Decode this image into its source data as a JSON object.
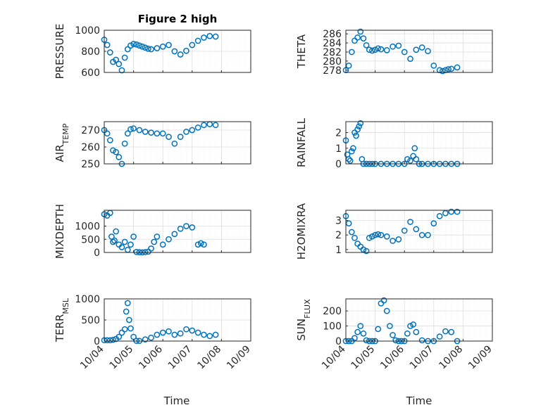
{
  "figure": {
    "title": "Figure 2 high",
    "marker_color": "#0072bd",
    "axis_color": "#262626",
    "grid_color": "#dedede",
    "left_xlabel": "Time",
    "right_xlabel": "Time"
  },
  "chart_data": [
    {
      "type": "scatter",
      "name": "pressure",
      "title": "Figure 2 high",
      "ylabel": "PRESSURE",
      "xlim": [
        0,
        5
      ],
      "ylim": [
        600,
        1000
      ],
      "yticks": [
        600,
        800,
        1000
      ],
      "xticks": [
        0,
        1,
        2,
        3,
        4,
        5
      ],
      "xticklabels": [
        "10/04",
        "10/05",
        "10/06",
        "10/07",
        "10/08",
        "10/09"
      ],
      "grid": true,
      "x": [
        0,
        0.1,
        0.2,
        0.3,
        0.4,
        0.5,
        0.6,
        0.7,
        0.8,
        0.9,
        1.0,
        1.1,
        1.2,
        1.3,
        1.4,
        1.5,
        1.6,
        1.8,
        2.0,
        2.2,
        2.4,
        2.6,
        2.8,
        3.0,
        3.2,
        3.4,
        3.6,
        3.8
      ],
      "y": [
        910,
        860,
        790,
        700,
        720,
        680,
        620,
        740,
        820,
        855,
        870,
        865,
        855,
        845,
        835,
        825,
        820,
        830,
        845,
        860,
        800,
        770,
        805,
        860,
        900,
        930,
        945,
        940
      ]
    },
    {
      "type": "scatter",
      "name": "theta",
      "ylabel": "THETA",
      "xlim": [
        0,
        5
      ],
      "ylim": [
        277.5,
        286.8
      ],
      "yticks": [
        278,
        280,
        282,
        284,
        286
      ],
      "xticks": [
        0,
        1,
        2,
        3,
        4,
        5
      ],
      "xticklabels": [
        "10/04",
        "10/05",
        "10/06",
        "10/07",
        "10/08",
        "10/09"
      ],
      "grid": true,
      "x": [
        0,
        0.1,
        0.2,
        0.3,
        0.4,
        0.5,
        0.6,
        0.7,
        0.8,
        0.9,
        1.0,
        1.1,
        1.2,
        1.4,
        1.6,
        1.8,
        2.0,
        2.2,
        2.4,
        2.6,
        2.8,
        3.0,
        3.2,
        3.3,
        3.4,
        3.5,
        3.6,
        3.8
      ],
      "y": [
        278,
        279,
        282,
        284.5,
        285.2,
        286.5,
        285,
        283.5,
        282.5,
        282.3,
        282.5,
        282.8,
        282.6,
        282.4,
        283.2,
        283.4,
        282,
        280.5,
        282.5,
        283,
        282.2,
        279,
        278,
        277.8,
        278,
        278.2,
        278.3,
        278.6
      ]
    },
    {
      "type": "scatter",
      "name": "air_temp",
      "ylabel": "AIR_TEMP",
      "xlim": [
        0,
        5
      ],
      "ylim": [
        250,
        275
      ],
      "yticks": [
        250,
        260,
        270
      ],
      "xticks": [
        0,
        1,
        2,
        3,
        4,
        5
      ],
      "xticklabels": [
        "10/04",
        "10/05",
        "10/06",
        "10/07",
        "10/08",
        "10/09"
      ],
      "grid": true,
      "x": [
        0,
        0.1,
        0.2,
        0.3,
        0.4,
        0.5,
        0.6,
        0.7,
        0.8,
        0.9,
        1.0,
        1.2,
        1.4,
        1.6,
        1.8,
        2.0,
        2.2,
        2.4,
        2.6,
        2.8,
        3.0,
        3.2,
        3.4,
        3.6,
        3.8
      ],
      "y": [
        270,
        268,
        264,
        258,
        257,
        254,
        250,
        262,
        268,
        270.5,
        271,
        270,
        269,
        268.5,
        268,
        268,
        266,
        262,
        266,
        269,
        270,
        271.5,
        273,
        273.5,
        273
      ]
    },
    {
      "type": "scatter",
      "name": "rainfall",
      "ylabel": "RAINFALL",
      "xlim": [
        0,
        5
      ],
      "ylim": [
        0,
        2.7
      ],
      "yticks": [
        0,
        1,
        2
      ],
      "xticks": [
        0,
        1,
        2,
        3,
        4,
        5
      ],
      "xticklabels": [
        "10/04",
        "10/05",
        "10/06",
        "10/07",
        "10/08",
        "10/09"
      ],
      "grid": true,
      "x": [
        0,
        0.05,
        0.1,
        0.15,
        0.2,
        0.25,
        0.3,
        0.35,
        0.4,
        0.45,
        0.5,
        0.55,
        0.6,
        0.7,
        0.8,
        0.9,
        1.0,
        1.2,
        1.4,
        1.6,
        1.8,
        2.0,
        2.1,
        2.2,
        2.3,
        2.35,
        2.4,
        2.5,
        2.6,
        2.8,
        3.0,
        3.2,
        3.4,
        3.6,
        3.8
      ],
      "y": [
        1.5,
        0.6,
        0.3,
        0.2,
        0.8,
        1.0,
        2.0,
        1.8,
        2.2,
        2.4,
        2.6,
        0.3,
        0,
        0,
        0,
        0,
        0,
        0,
        0,
        0,
        0,
        0,
        0.3,
        0.2,
        0.5,
        1.0,
        0.3,
        0,
        0,
        0,
        0,
        0,
        0,
        0,
        0
      ]
    },
    {
      "type": "scatter",
      "name": "mixdepth",
      "ylabel": "MIXDEPTH",
      "xlim": [
        0,
        5
      ],
      "ylim": [
        0,
        1600
      ],
      "yticks": [
        0,
        500,
        1000
      ],
      "xticks": [
        0,
        1,
        2,
        3,
        4,
        5
      ],
      "xticklabels": [
        "10/04",
        "10/05",
        "10/06",
        "10/07",
        "10/08",
        "10/09"
      ],
      "grid": true,
      "x": [
        0,
        0.1,
        0.2,
        0.25,
        0.3,
        0.35,
        0.4,
        0.5,
        0.6,
        0.7,
        0.8,
        0.9,
        1.0,
        1.1,
        1.2,
        1.3,
        1.4,
        1.5,
        1.6,
        1.7,
        1.8,
        2.0,
        2.2,
        2.4,
        2.6,
        2.8,
        3.0,
        3.2,
        3.3,
        3.4
      ],
      "y": [
        1450,
        1400,
        1500,
        600,
        400,
        450,
        800,
        300,
        200,
        400,
        100,
        300,
        600,
        20,
        10,
        5,
        15,
        30,
        150,
        400,
        600,
        300,
        500,
        700,
        900,
        1000,
        950,
        300,
        350,
        300
      ]
    },
    {
      "type": "scatter",
      "name": "h2omixra",
      "ylabel": "H2OMIXRA",
      "xlim": [
        0,
        5
      ],
      "ylim": [
        0.8,
        3.7
      ],
      "yticks": [
        1,
        2,
        3
      ],
      "xticks": [
        0,
        1,
        2,
        3,
        4,
        5
      ],
      "xticklabels": [
        "10/04",
        "10/05",
        "10/06",
        "10/07",
        "10/08",
        "10/09"
      ],
      "grid": true,
      "x": [
        0,
        0.1,
        0.2,
        0.3,
        0.4,
        0.5,
        0.6,
        0.7,
        0.8,
        0.9,
        1.0,
        1.1,
        1.2,
        1.4,
        1.6,
        1.8,
        2.0,
        2.2,
        2.4,
        2.6,
        2.8,
        3.0,
        3.2,
        3.4,
        3.6,
        3.8
      ],
      "y": [
        3.3,
        2.8,
        2.2,
        1.8,
        1.4,
        1.2,
        1.0,
        0.9,
        1.8,
        1.9,
        2.0,
        2.05,
        2.0,
        1.9,
        1.6,
        1.7,
        2.3,
        2.9,
        2.4,
        2.0,
        2.0,
        2.8,
        3.3,
        3.5,
        3.6,
        3.6
      ]
    },
    {
      "type": "scatter",
      "name": "terr_msl",
      "ylabel": "TERR_MSL",
      "xlim": [
        0,
        5
      ],
      "ylim": [
        0,
        1000
      ],
      "yticks": [
        0,
        500,
        1000
      ],
      "xticks": [
        0,
        1,
        2,
        3,
        4,
        5
      ],
      "xticklabels": [
        "10/04",
        "10/05",
        "10/06",
        "10/07",
        "10/08",
        "10/09"
      ],
      "grid": true,
      "x": [
        0,
        0.1,
        0.2,
        0.3,
        0.4,
        0.5,
        0.6,
        0.7,
        0.75,
        0.8,
        0.85,
        0.9,
        1.0,
        1.1,
        1.2,
        1.4,
        1.6,
        1.8,
        2.0,
        2.2,
        2.4,
        2.6,
        2.8,
        3.0,
        3.2,
        3.4,
        3.6,
        3.8
      ],
      "y": [
        20,
        20,
        20,
        30,
        50,
        100,
        200,
        280,
        700,
        900,
        500,
        300,
        100,
        5,
        5,
        40,
        80,
        150,
        200,
        230,
        150,
        180,
        280,
        250,
        200,
        150,
        120,
        150
      ]
    },
    {
      "type": "scatter",
      "name": "sun_flux",
      "ylabel": "SUN_FLUX",
      "xlim": [
        0,
        5
      ],
      "ylim": [
        0,
        280
      ],
      "yticks": [
        0,
        100,
        200
      ],
      "xticks": [
        0,
        1,
        2,
        3,
        4,
        5
      ],
      "xticklabels": [
        "10/04",
        "10/05",
        "10/06",
        "10/07",
        "10/08",
        "10/09"
      ],
      "grid": true,
      "x": [
        0,
        0.1,
        0.2,
        0.3,
        0.4,
        0.5,
        0.6,
        0.7,
        0.8,
        0.9,
        1.0,
        1.1,
        1.2,
        1.3,
        1.4,
        1.5,
        1.6,
        1.7,
        1.8,
        1.9,
        2.0,
        2.1,
        2.2,
        2.3,
        2.4,
        2.6,
        2.8,
        3.0,
        3.2,
        3.4,
        3.6,
        3.8
      ],
      "y": [
        0,
        0,
        0,
        20,
        60,
        100,
        50,
        5,
        0,
        0,
        0,
        80,
        250,
        270,
        200,
        100,
        40,
        5,
        0,
        0,
        0,
        50,
        100,
        110,
        60,
        5,
        0,
        0,
        30,
        65,
        60,
        0
      ]
    }
  ]
}
